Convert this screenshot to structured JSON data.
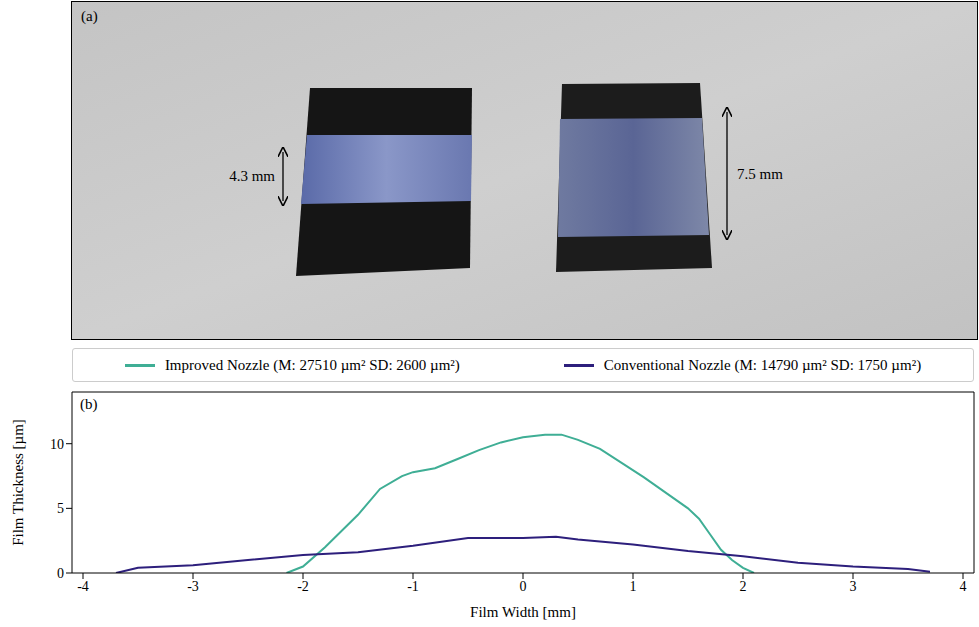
{
  "panel_a": {
    "label": "(a)",
    "annotations": [
      "4.3 mm",
      "7.5 mm"
    ]
  },
  "chart_data": {
    "type": "line",
    "annotations": [
      "(b)"
    ],
    "x_label": "Film Width [mm]",
    "y_label": "Film Thickness [µm]",
    "xlim": [
      -4.1,
      4.1
    ],
    "xticks": [
      -4,
      -3,
      -2,
      -1,
      0,
      1,
      2,
      3,
      4
    ],
    "ylim": [
      0,
      14
    ],
    "yticks": [
      0,
      5,
      10
    ],
    "grid": false,
    "legend": "top",
    "series": [
      {
        "name": "Improved Nozzle (M: 27510 µm² SD: 2600 µm²)",
        "color": "#3fae95",
        "x": [
          -2.15,
          -2.0,
          -1.8,
          -1.5,
          -1.3,
          -1.1,
          -1.0,
          -0.8,
          -0.6,
          -0.4,
          -0.2,
          0,
          0.2,
          0.35,
          0.5,
          0.7,
          0.9,
          1.1,
          1.3,
          1.5,
          1.6,
          1.7,
          1.8,
          1.9,
          2.0,
          2.1
        ],
        "values": [
          0,
          0.5,
          2,
          4.5,
          6.5,
          7.5,
          7.8,
          8.1,
          8.8,
          9.5,
          10.1,
          10.5,
          10.7,
          10.7,
          10.3,
          9.6,
          8.5,
          7.4,
          6.2,
          5.0,
          4.2,
          3.0,
          1.8,
          1.0,
          0.4,
          0
        ]
      },
      {
        "name": "Conventional Nozzle (M: 14790 µm² SD: 1750 µm²)",
        "color": "#2d1f7c",
        "x": [
          -3.7,
          -3.5,
          -3.0,
          -2.5,
          -2.0,
          -1.5,
          -1.0,
          -0.5,
          0,
          0.3,
          0.5,
          1.0,
          1.5,
          2.0,
          2.5,
          3.0,
          3.5,
          3.7
        ],
        "values": [
          0,
          0.4,
          0.6,
          1.0,
          1.4,
          1.6,
          2.1,
          2.7,
          2.7,
          2.8,
          2.6,
          2.2,
          1.7,
          1.3,
          0.8,
          0.5,
          0.3,
          0.1
        ]
      }
    ]
  }
}
